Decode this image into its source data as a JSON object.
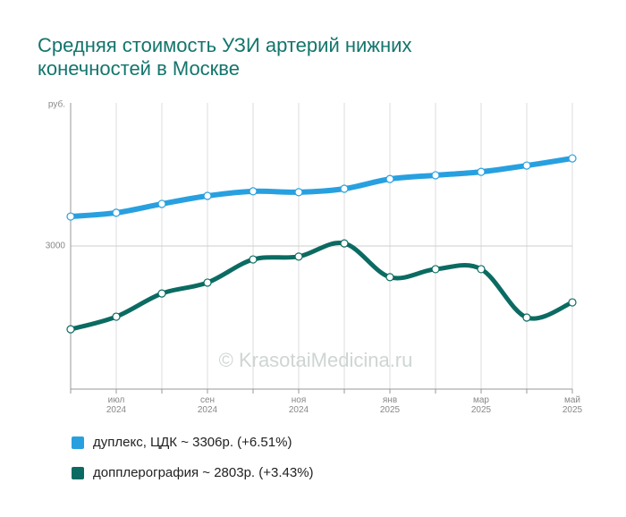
{
  "chart_data": {
    "type": "line",
    "title": "Средняя стоимость УЗИ артерий нижних конечностей в Москве",
    "ylabel": "руб.",
    "watermark": "© KrasotaiMedicina.ru",
    "categories": [
      null,
      "июл\n2024",
      null,
      "сен\n2024",
      null,
      "ноя\n2024",
      null,
      "янв\n2025",
      null,
      "мар\n2025",
      null,
      "май\n2025"
    ],
    "series": [
      {
        "name": "дуплекс, ЦДК ~ 3306р. (+6.51%)",
        "color": "#28a0e0",
        "values": [
          3103,
          3116,
          3147,
          3175,
          3191,
          3188,
          3200,
          3234,
          3247,
          3259,
          3281,
          3306
        ]
      },
      {
        "name": "допплерография ~ 2803р. (+3.43%)",
        "color": "#0b6b62",
        "values": [
          2709,
          2753,
          2834,
          2872,
          2953,
          2963,
          3009,
          2891,
          2919,
          2919,
          2750,
          2803
        ]
      }
    ],
    "ylim": [
      2500,
      3500
    ],
    "yticks": [
      3000
    ],
    "grid": true
  }
}
